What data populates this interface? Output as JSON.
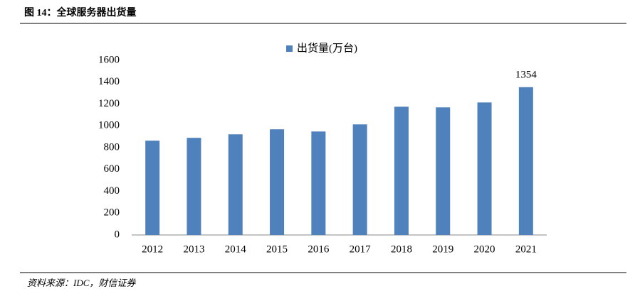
{
  "chart_data": {
    "type": "bar",
    "title": "图 14：全球服务器出货量",
    "source": "资料来源：IDC，财信证券",
    "categories": [
      "2012",
      "2013",
      "2014",
      "2015",
      "2016",
      "2017",
      "2018",
      "2019",
      "2020",
      "2021"
    ],
    "series": [
      {
        "name": "出货量(万台)",
        "color": "#4f81bd",
        "values": [
          864,
          890,
          922,
          968,
          948,
          1013,
          1175,
          1169,
          1214,
          1354
        ],
        "value_labels": [
          null,
          null,
          null,
          null,
          null,
          null,
          null,
          null,
          null,
          "1354"
        ]
      }
    ],
    "ylim": [
      0,
      1600
    ],
    "yticks": [
      0,
      200,
      400,
      600,
      800,
      1000,
      1200,
      1400,
      1600
    ],
    "grid": false,
    "legend": "top"
  }
}
